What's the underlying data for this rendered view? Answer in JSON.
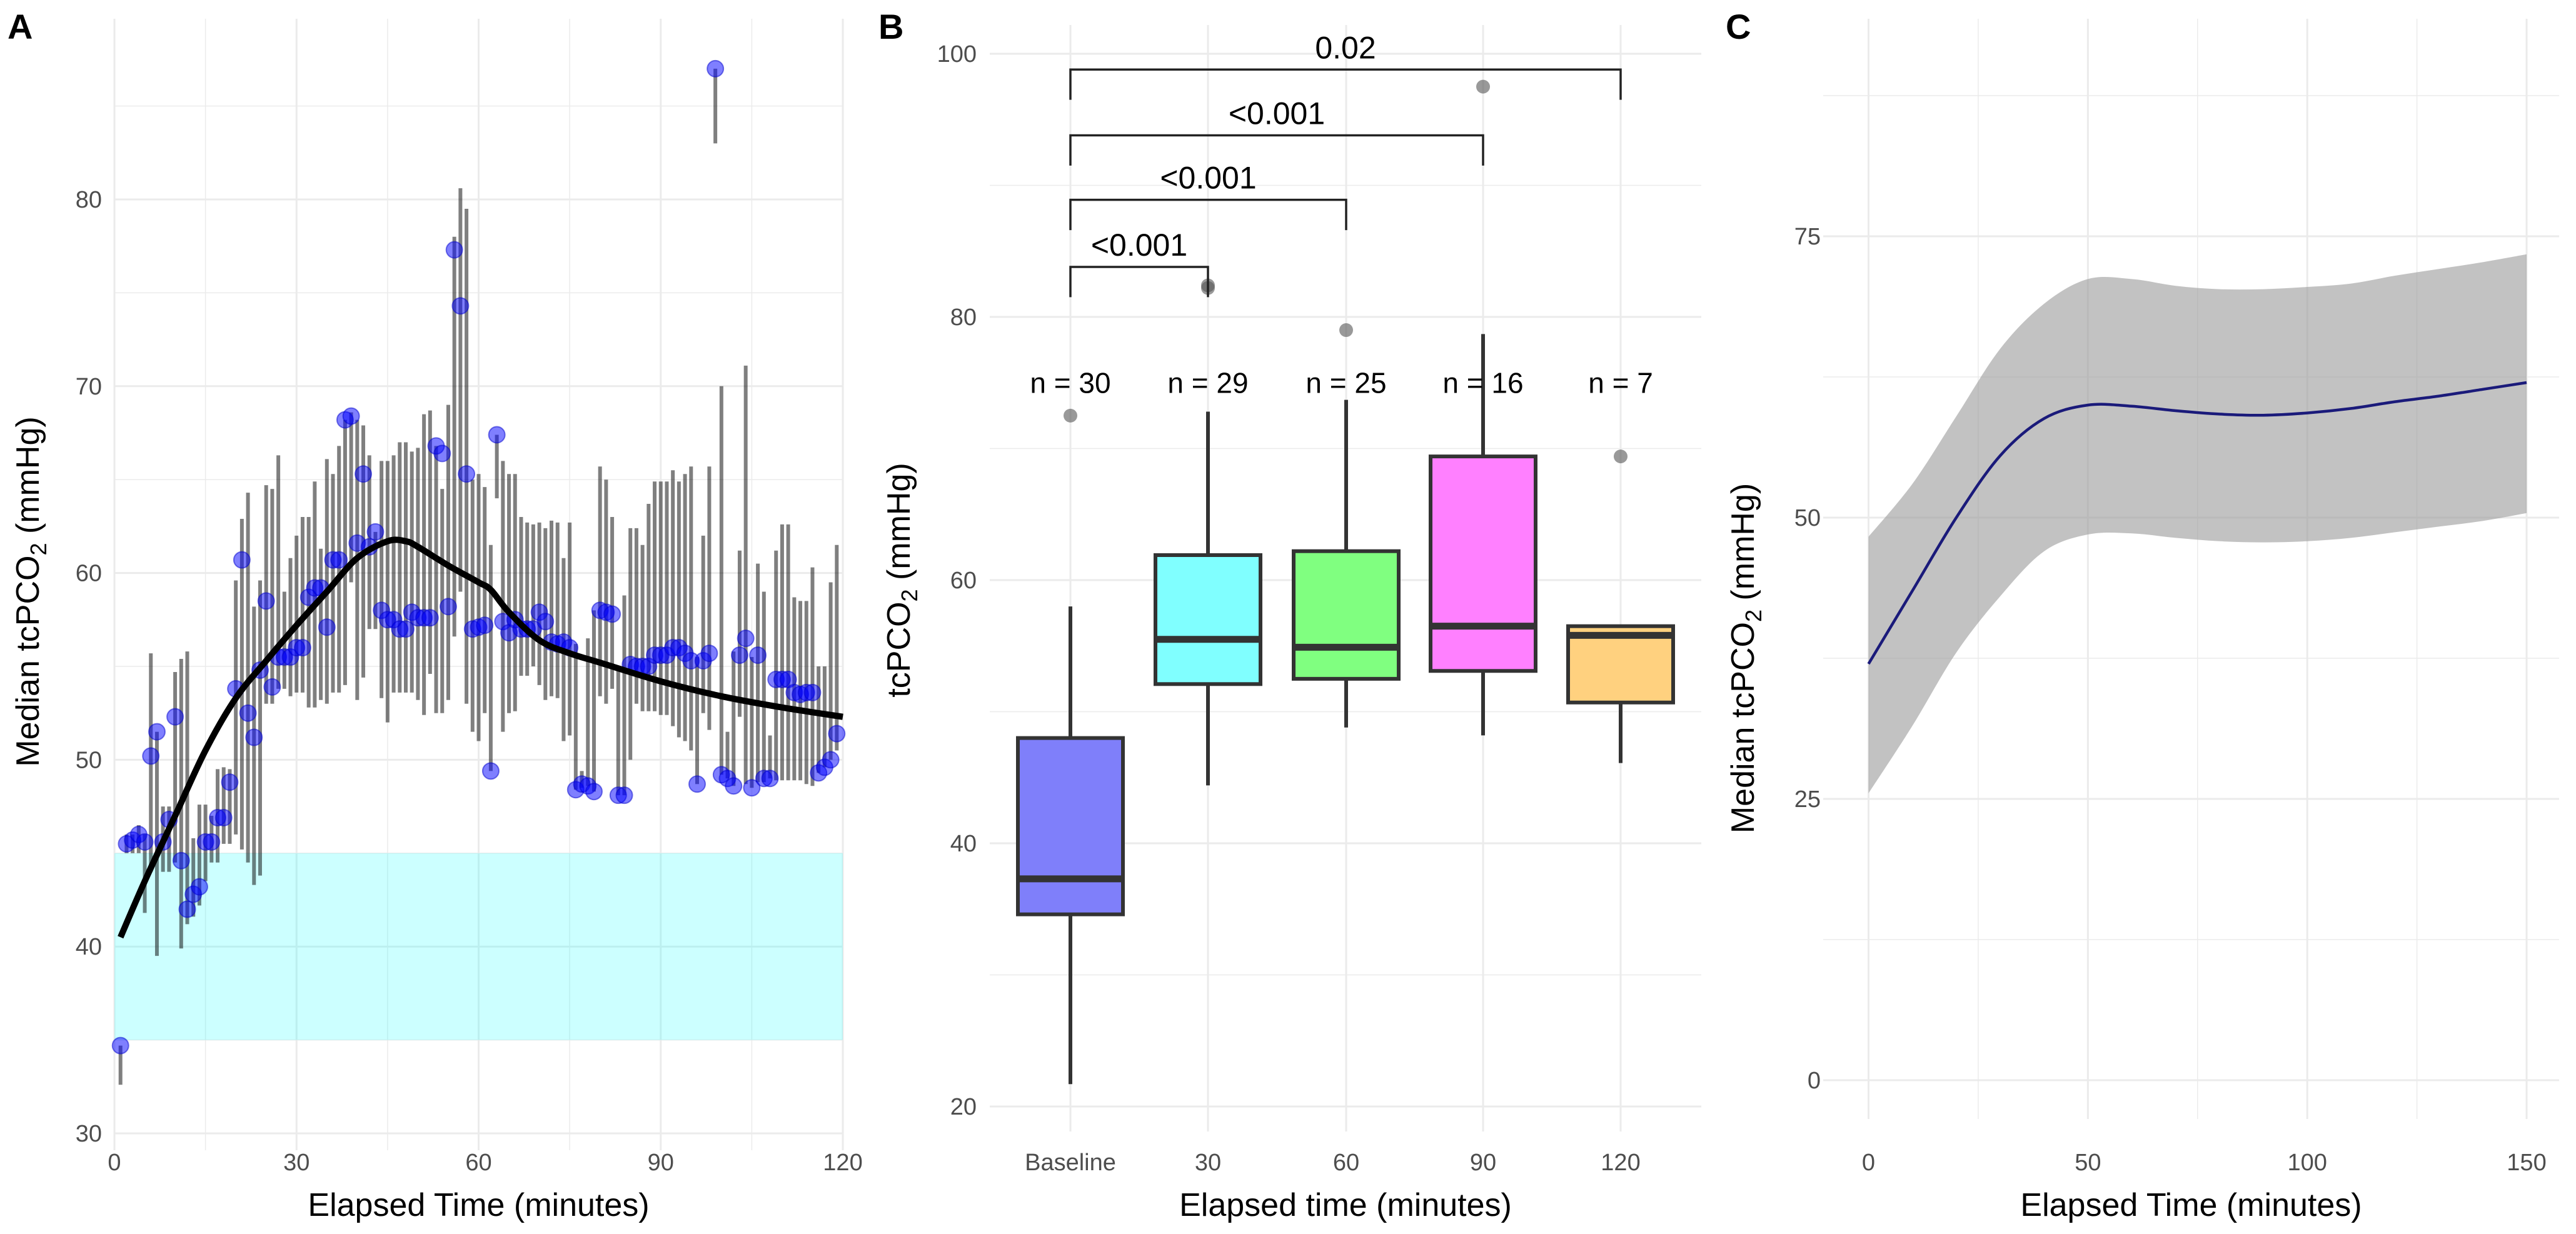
{
  "chart_data": [
    {
      "panel_label": "A",
      "type": "scatter",
      "title": "",
      "xlabel": "Elapsed Time (minutes)",
      "ylabel": {
        "pre": "Median tcPCO",
        "sub": "2",
        "post": " (mmHg)"
      },
      "xlim": [
        0,
        120
      ],
      "ylim": [
        30,
        88
      ],
      "xticks": [
        0,
        30,
        60,
        90,
        120
      ],
      "yticks": [
        30,
        40,
        50,
        60,
        70,
        80
      ],
      "grid": true,
      "reference_band": {
        "ymin": 35,
        "ymax": 45,
        "color": "#00ffff"
      },
      "point_color": "#0000ff",
      "points_fields": [
        "minute",
        "median",
        "low",
        "high"
      ],
      "points": [
        [
          1,
          34.7,
          32.6,
          34.7
        ],
        [
          2,
          45.5,
          45,
          46
        ],
        [
          3,
          45.7,
          45,
          46
        ],
        [
          4,
          46.0,
          45,
          46.5
        ],
        [
          5,
          45.6,
          41.8,
          46
        ],
        [
          6,
          50.2,
          44,
          55.7
        ],
        [
          7,
          51.5,
          39.5,
          51.5
        ],
        [
          8,
          45.6,
          44,
          47.5
        ],
        [
          9,
          46.8,
          44,
          47.5
        ],
        [
          10,
          52.3,
          44.5,
          54.7
        ],
        [
          11,
          44.6,
          39.9,
          55.4
        ],
        [
          12,
          42.0,
          41.2,
          55.8
        ],
        [
          13,
          42.8,
          41.6,
          45.8
        ],
        [
          14,
          43.2,
          42.2,
          47.6
        ],
        [
          15,
          45.6,
          43.5,
          47.6
        ],
        [
          16,
          45.6,
          44.5,
          47
        ],
        [
          17,
          46.9,
          44.5,
          49.5
        ],
        [
          18,
          46.9,
          45.5,
          49.6
        ],
        [
          19,
          48.8,
          45.5,
          49.5
        ],
        [
          20,
          53.8,
          46,
          59.6
        ],
        [
          21,
          60.7,
          45.2,
          62.9
        ],
        [
          22,
          52.5,
          44.5,
          64.3
        ],
        [
          23,
          51.2,
          43.3,
          58.2
        ],
        [
          24,
          54.8,
          43.8,
          59.6
        ],
        [
          25,
          58.5,
          53,
          64.7
        ],
        [
          26,
          53.9,
          53,
          64.5
        ],
        [
          27,
          55.5,
          53.8,
          66.3
        ],
        [
          28,
          55.5,
          53.8,
          59
        ],
        [
          29,
          55.5,
          53.4,
          60.8
        ],
        [
          30,
          56,
          53.6,
          62
        ],
        [
          31,
          56,
          53.6,
          63
        ],
        [
          32,
          58.7,
          52.8,
          63
        ],
        [
          33,
          59.2,
          52.8,
          64.9
        ],
        [
          34,
          59.2,
          53.2,
          61.3
        ],
        [
          35,
          57.1,
          53,
          66.1
        ],
        [
          36,
          60.7,
          53.6,
          65.3
        ],
        [
          37,
          60.7,
          53.6,
          66.8
        ],
        [
          38,
          68.2,
          54,
          68.2
        ],
        [
          39,
          68.4,
          59.5,
          68.6
        ],
        [
          40,
          61.6,
          53.2,
          68.2
        ],
        [
          41,
          65.3,
          54.4,
          67.9
        ],
        [
          42,
          61.4,
          57,
          66.3
        ],
        [
          43,
          62.2,
          57,
          62.2
        ],
        [
          44,
          58,
          53.3,
          66
        ],
        [
          45,
          57.5,
          52,
          66
        ],
        [
          46,
          57.5,
          53.6,
          66.3
        ],
        [
          47,
          57,
          53.6,
          67
        ],
        [
          48,
          57,
          53.6,
          67
        ],
        [
          49,
          57.9,
          53.6,
          66.5
        ],
        [
          50,
          57.6,
          53.2,
          66.7
        ],
        [
          51,
          57.6,
          52.4,
          68.5
        ],
        [
          52,
          57.6,
          54.6,
          68.7
        ],
        [
          53,
          66.8,
          52.5,
          66.8
        ],
        [
          54,
          66.4,
          52.5,
          64.5
        ],
        [
          55,
          58.2,
          53.2,
          69
        ],
        [
          56,
          77.3,
          56.6,
          78
        ],
        [
          57,
          74.3,
          59,
          80.6
        ],
        [
          58,
          65.3,
          53,
          79.5
        ],
        [
          59,
          57,
          51.5,
          65
        ],
        [
          60,
          57.1,
          51,
          65.3
        ],
        [
          61,
          57.2,
          52.5,
          64.6
        ],
        [
          62,
          49.4,
          49.4,
          61.5
        ],
        [
          63,
          67.4,
          64,
          67.4
        ],
        [
          64,
          57.4,
          51.5,
          66
        ],
        [
          65,
          56.8,
          52.5,
          65.3
        ],
        [
          66,
          57.5,
          52.6,
          65.3
        ],
        [
          67,
          57,
          54.5,
          63
        ],
        [
          68,
          57,
          54.5,
          62.7
        ],
        [
          69,
          57,
          55,
          62.6
        ],
        [
          70,
          57.9,
          54,
          62.7
        ],
        [
          71,
          57.4,
          53.2,
          62.4
        ],
        [
          72,
          56.3,
          53.4,
          62.8
        ],
        [
          73,
          56.2,
          53.3,
          62.7
        ],
        [
          74,
          56.3,
          51,
          60.8
        ],
        [
          75,
          56,
          51.3,
          62.7
        ],
        [
          76,
          48.4,
          48.4,
          56.2
        ],
        [
          77,
          48.7,
          48.5,
          49.4
        ],
        [
          78,
          48.6,
          48.6,
          56.5
        ],
        [
          79,
          48.3,
          48.3,
          58
        ],
        [
          80,
          58,
          53.4,
          65.7
        ],
        [
          81,
          57.9,
          53,
          65
        ],
        [
          82,
          57.8,
          53.8,
          63
        ],
        [
          83,
          48.1,
          48.1,
          54.8
        ],
        [
          84,
          48.1,
          48.1,
          58.8
        ],
        [
          85,
          55.1,
          50,
          62.4
        ],
        [
          86,
          55,
          53,
          62.4
        ],
        [
          87,
          55,
          52.6,
          61.5
        ],
        [
          88,
          55,
          52.6,
          63.7
        ],
        [
          89,
          55.6,
          52.6,
          64.9
        ],
        [
          90,
          55.6,
          52.4,
          64.9
        ],
        [
          91,
          55.6,
          52.4,
          64.9
        ],
        [
          92,
          56,
          51.8,
          65.5
        ],
        [
          93,
          56,
          51.2,
          64.9
        ],
        [
          94,
          55.7,
          51,
          65.3
        ],
        [
          95,
          55.3,
          50.5,
          65.7
        ],
        [
          96,
          48.7,
          48.7,
          55.5
        ],
        [
          97,
          55.3,
          52.5,
          62
        ],
        [
          98,
          55.7,
          51.6,
          65.7
        ],
        [
          99,
          87,
          83,
          87
        ],
        [
          100,
          49.2,
          49.2,
          70
        ],
        [
          101,
          49,
          49,
          51.5
        ],
        [
          102,
          48.6,
          48.6,
          55.8
        ],
        [
          103,
          55.6,
          52.3,
          61.2
        ],
        [
          104,
          56.5,
          48.7,
          71.1
        ],
        [
          105,
          48.5,
          48.5,
          55.5
        ],
        [
          106,
          55.6,
          48.8,
          60.5
        ],
        [
          107,
          49,
          48.8,
          59
        ],
        [
          108,
          49,
          49,
          51.3
        ],
        [
          109,
          54.3,
          48.9,
          61.2
        ],
        [
          110,
          54.3,
          48.9,
          62.6
        ],
        [
          111,
          54.3,
          48.9,
          62.6
        ],
        [
          112,
          53.6,
          48.9,
          58.7
        ],
        [
          113,
          53.5,
          48.9,
          58.5
        ],
        [
          114,
          53.6,
          48.7,
          58.5
        ],
        [
          115,
          53.6,
          48.6,
          60.3
        ],
        [
          116,
          49.3,
          49.3,
          55
        ],
        [
          117,
          49.6,
          49.6,
          55
        ],
        [
          118,
          50,
          50,
          59.5
        ],
        [
          119,
          51.4,
          50.5,
          61.5
        ]
      ],
      "smooth": {
        "x": [
          1,
          5,
          10,
          15,
          20,
          25,
          30,
          35,
          40,
          45,
          48,
          50,
          55,
          60,
          62,
          65,
          70,
          75,
          80,
          90,
          100,
          110,
          120
        ],
        "y": [
          40.5,
          43.5,
          47,
          50.5,
          53.3,
          55.3,
          57.2,
          59,
          60.8,
          61.7,
          61.7,
          61.4,
          60.4,
          59.5,
          59.1,
          57.9,
          56.4,
          55.7,
          55.2,
          54.2,
          53.4,
          52.8,
          52.3
        ]
      }
    },
    {
      "panel_label": "B",
      "type": "box",
      "title": "",
      "xlabel": "Elapsed time (minutes)",
      "ylabel": {
        "pre": "tcPCO",
        "sub": "2",
        "post": " (mmHg)"
      },
      "ylim": [
        20,
        100
      ],
      "yticks": [
        20,
        40,
        60,
        80,
        100
      ],
      "grid": true,
      "categories": [
        "Baseline",
        "30",
        "60",
        "90",
        "120"
      ],
      "n_label_value": 75,
      "boxes": [
        {
          "label": "Baseline",
          "n_label": "n = 30",
          "min": 21.7,
          "q1": 34.6,
          "median": 37.3,
          "q3": 48.0,
          "max": 58.0,
          "outliers": [
            72.5
          ],
          "color": "#7f7ffa"
        },
        {
          "label": "30",
          "n_label": "n = 29",
          "min": 44.4,
          "q1": 52.1,
          "median": 55.5,
          "q3": 61.9,
          "max": 72.8,
          "outliers": [
            82.2,
            82.4
          ],
          "color": "#80ffff"
        },
        {
          "label": "60",
          "n_label": "n = 25",
          "min": 48.8,
          "q1": 52.5,
          "median": 54.9,
          "q3": 62.2,
          "max": 73.7,
          "outliers": [
            79.0
          ],
          "color": "#80ff80"
        },
        {
          "label": "90",
          "n_label": "n = 16",
          "min": 48.2,
          "q1": 53.1,
          "median": 56.5,
          "q3": 69.4,
          "max": 78.7,
          "outliers": [
            97.5
          ],
          "color": "#ff80ff"
        },
        {
          "label": "120",
          "n_label": "n = 7",
          "min": 46.1,
          "q1": 50.7,
          "median": 55.8,
          "q3": 56.5,
          "max": 56.5,
          "outliers": [
            69.4
          ],
          "color": "#ffd17f"
        }
      ],
      "comparisons": [
        {
          "from": 0,
          "to": 1,
          "label": "<0.001",
          "y": 83.8
        },
        {
          "from": 0,
          "to": 2,
          "label": "<0.001",
          "y": 88.9
        },
        {
          "from": 0,
          "to": 3,
          "label": "<0.001",
          "y": 93.8
        },
        {
          "from": 0,
          "to": 4,
          "label": "0.02",
          "y": 98.8
        }
      ]
    },
    {
      "panel_label": "C",
      "type": "line",
      "title": "",
      "xlabel": "Elapsed Time (minutes)",
      "ylabel": {
        "pre": "Median tcPCO",
        "sub": "2",
        "post": " (mmHg)"
      },
      "xlim": [
        0,
        150
      ],
      "ylim": [
        0,
        75
      ],
      "xticks": [
        0,
        50,
        100,
        150
      ],
      "yticks": [
        0,
        25,
        50,
        75
      ],
      "grid": true,
      "line_color": "#1a1a7a",
      "ribbon_color": "#999999",
      "x": [
        0,
        10,
        20,
        30,
        40,
        50,
        60,
        70,
        80,
        90,
        100,
        110,
        120,
        130,
        140,
        150
      ],
      "fit": [
        37,
        43.5,
        50,
        55.5,
        58.8,
        60,
        59.9,
        59.5,
        59.2,
        59.1,
        59.3,
        59.7,
        60.3,
        60.8,
        61.4,
        62
      ],
      "upper": [
        48.3,
        53,
        59,
        65,
        69,
        71.2,
        71.2,
        70.6,
        70.3,
        70.3,
        70.5,
        70.8,
        71.5,
        72.1,
        72.7,
        73.4
      ],
      "lower": [
        25.5,
        31.5,
        38,
        43,
        47,
        48.5,
        48.6,
        48.2,
        47.9,
        47.8,
        47.9,
        48.2,
        48.7,
        49.2,
        49.7,
        50.4
      ]
    }
  ]
}
